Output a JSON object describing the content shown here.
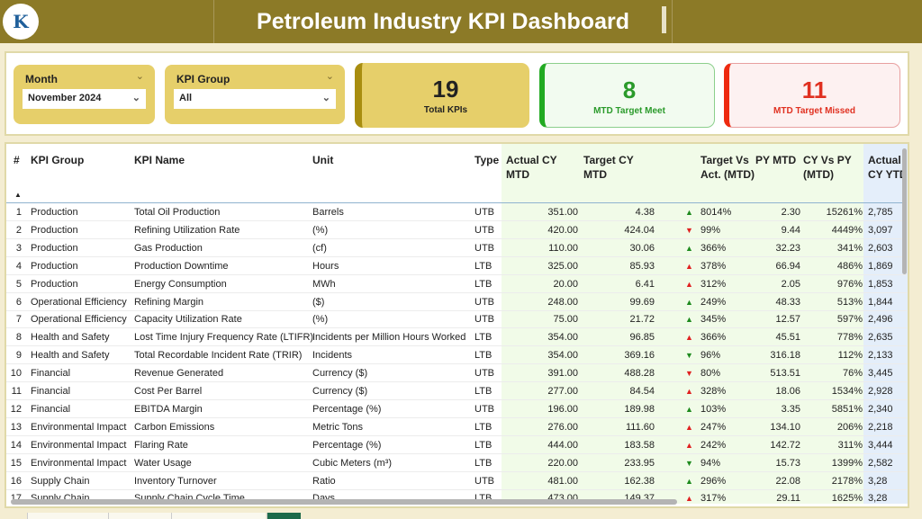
{
  "header": {
    "title": "Petroleum Industry KPI Dashboard",
    "logo_text": "K"
  },
  "filters": {
    "month": {
      "label": "Month",
      "value": "November 2024"
    },
    "kpi_group": {
      "label": "KPI Group",
      "value": "All"
    }
  },
  "cards": [
    {
      "value": "19",
      "label": "Total KPIs",
      "color": "#222222"
    },
    {
      "value": "8",
      "label": "MTD Target Meet",
      "color": "#2a9a2a"
    },
    {
      "value": "11",
      "label": "MTD Target Missed",
      "color": "#e03020"
    }
  ],
  "colors": {
    "header": "#8c7a27",
    "up_good": "#1e8a1e",
    "bad": "#e02020"
  },
  "table": {
    "columns": [
      "#",
      "KPI Group",
      "KPI Name",
      "Unit",
      "Type",
      "Actual CY MTD",
      "Target CY MTD",
      "Target Vs Act. (MTD)",
      "PY MTD",
      "CY Vs PY (MTD)",
      "Actual CY YTD"
    ],
    "rows": [
      [
        "1",
        "Production",
        "Total Oil Production",
        "Barrels",
        "UTB",
        "351.00",
        "4.38",
        "up",
        "green",
        "8014%",
        "2.30",
        "15261%",
        "2,785"
      ],
      [
        "2",
        "Production",
        "Refining Utilization Rate",
        " (%)",
        "UTB",
        "420.00",
        "424.04",
        "down",
        "red",
        "99%",
        "9.44",
        "4449%",
        "3,097"
      ],
      [
        "3",
        "Production",
        "Gas Production",
        " (cf)",
        "UTB",
        "110.00",
        "30.06",
        "up",
        "green",
        "366%",
        "32.23",
        "341%",
        "2,603"
      ],
      [
        "4",
        "Production",
        "Production Downtime",
        "Hours",
        "LTB",
        "325.00",
        "85.93",
        "up",
        "red",
        "378%",
        "66.94",
        "486%",
        "1,869"
      ],
      [
        "5",
        "Production",
        "Energy Consumption",
        "MWh",
        "LTB",
        "20.00",
        "6.41",
        "up",
        "red",
        "312%",
        "2.05",
        "976%",
        "1,853"
      ],
      [
        "6",
        "Operational Efficiency",
        "Refining Margin",
        " ($)",
        "UTB",
        "248.00",
        "99.69",
        "up",
        "green",
        "249%",
        "48.33",
        "513%",
        "1,844"
      ],
      [
        "7",
        "Operational Efficiency",
        "Capacity Utilization Rate",
        "(%)",
        "UTB",
        "75.00",
        "21.72",
        "up",
        "green",
        "345%",
        "12.57",
        "597%",
        "2,496"
      ],
      [
        "8",
        "Health and Safety",
        "Lost Time Injury Frequency Rate (LTIFR)",
        "Incidents per Million Hours Worked",
        "LTB",
        "354.00",
        "96.85",
        "up",
        "red",
        "366%",
        "45.51",
        "778%",
        "2,635"
      ],
      [
        "9",
        "Health and Safety",
        "Total Recordable Incident Rate (TRIR)",
        "Incidents",
        "LTB",
        "354.00",
        "369.16",
        "down",
        "green",
        "96%",
        "316.18",
        "112%",
        "2,133"
      ],
      [
        "10",
        "Financial",
        "Revenue Generated",
        "Currency ($)",
        "UTB",
        "391.00",
        "488.28",
        "down",
        "red",
        "80%",
        "513.51",
        "76%",
        "3,445"
      ],
      [
        "11",
        "Financial",
        "Cost Per Barrel",
        "Currency ($)",
        "LTB",
        "277.00",
        "84.54",
        "up",
        "red",
        "328%",
        "18.06",
        "1534%",
        "2,928"
      ],
      [
        "12",
        "Financial",
        "EBITDA Margin",
        "Percentage (%)",
        "UTB",
        "196.00",
        "189.98",
        "up",
        "green",
        "103%",
        "3.35",
        "5851%",
        "2,340"
      ],
      [
        "13",
        "Environmental Impact",
        "Carbon Emissions",
        "Metric Tons",
        "LTB",
        "276.00",
        "111.60",
        "up",
        "red",
        "247%",
        "134.10",
        "206%",
        "2,218"
      ],
      [
        "14",
        "Environmental Impact",
        "Flaring Rate",
        "Percentage (%)",
        "LTB",
        "444.00",
        "183.58",
        "up",
        "red",
        "242%",
        "142.72",
        "311%",
        "3,444"
      ],
      [
        "15",
        "Environmental Impact",
        "Water Usage",
        "Cubic Meters (m³)",
        "LTB",
        "220.00",
        "233.95",
        "down",
        "green",
        "94%",
        "15.73",
        "1399%",
        "2,582"
      ],
      [
        "16",
        "Supply Chain",
        "Inventory Turnover",
        "Ratio",
        "UTB",
        "481.00",
        "162.38",
        "up",
        "green",
        "296%",
        "22.08",
        "2178%",
        "3,28"
      ],
      [
        "17",
        "Supply Chain",
        "Supply Chain Cycle Time",
        "Days",
        "LTB",
        "473.00",
        "149.37",
        "up",
        "red",
        "317%",
        "29.11",
        "1625%",
        "3,28"
      ]
    ]
  }
}
